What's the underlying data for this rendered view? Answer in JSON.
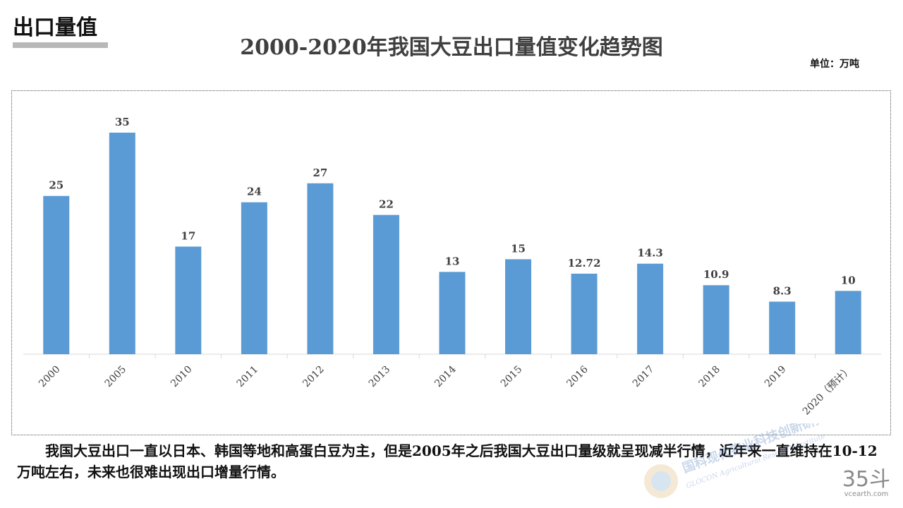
{
  "header": {
    "section_title": "出口量值",
    "unit": "单位：万吨"
  },
  "caption": "我国大豆出口一直以日本、韩国等地和高蛋白豆为主，但是2005年之后我国大豆出口量级就呈现减半行情，近年来一直维持在10-12万吨左右，未来也很难出现出口增量行情。",
  "watermark": {
    "cn": "国科现代农业科技创新研究院",
    "en": "GLOCON Agricultural Research Institute"
  },
  "brand": {
    "big": "35斗",
    "small": "vcearth.com"
  },
  "colors": {
    "bar": "#5b9bd5",
    "axis": "#d9d9d9",
    "label": "#404040"
  },
  "chart_data": {
    "type": "bar",
    "title": "2000-2020年我国大豆出口量值变化趋势图",
    "categories": [
      "2000",
      "2005",
      "2010",
      "2011",
      "2012",
      "2013",
      "2014",
      "2015",
      "2016",
      "2017",
      "2018",
      "2019",
      "2020（预计）"
    ],
    "values": [
      25,
      35,
      17,
      24,
      27,
      22,
      13,
      15,
      12.72,
      14.3,
      10.9,
      8.3,
      10
    ],
    "data_labels": [
      "25",
      "35",
      "17",
      "24",
      "27",
      "22",
      "13",
      "15",
      "12.72",
      "14.3",
      "10.9",
      "8.3",
      "10"
    ],
    "xlabel": "",
    "ylabel": "",
    "ylim": [
      0,
      35
    ],
    "grid": false,
    "legend": "none"
  }
}
